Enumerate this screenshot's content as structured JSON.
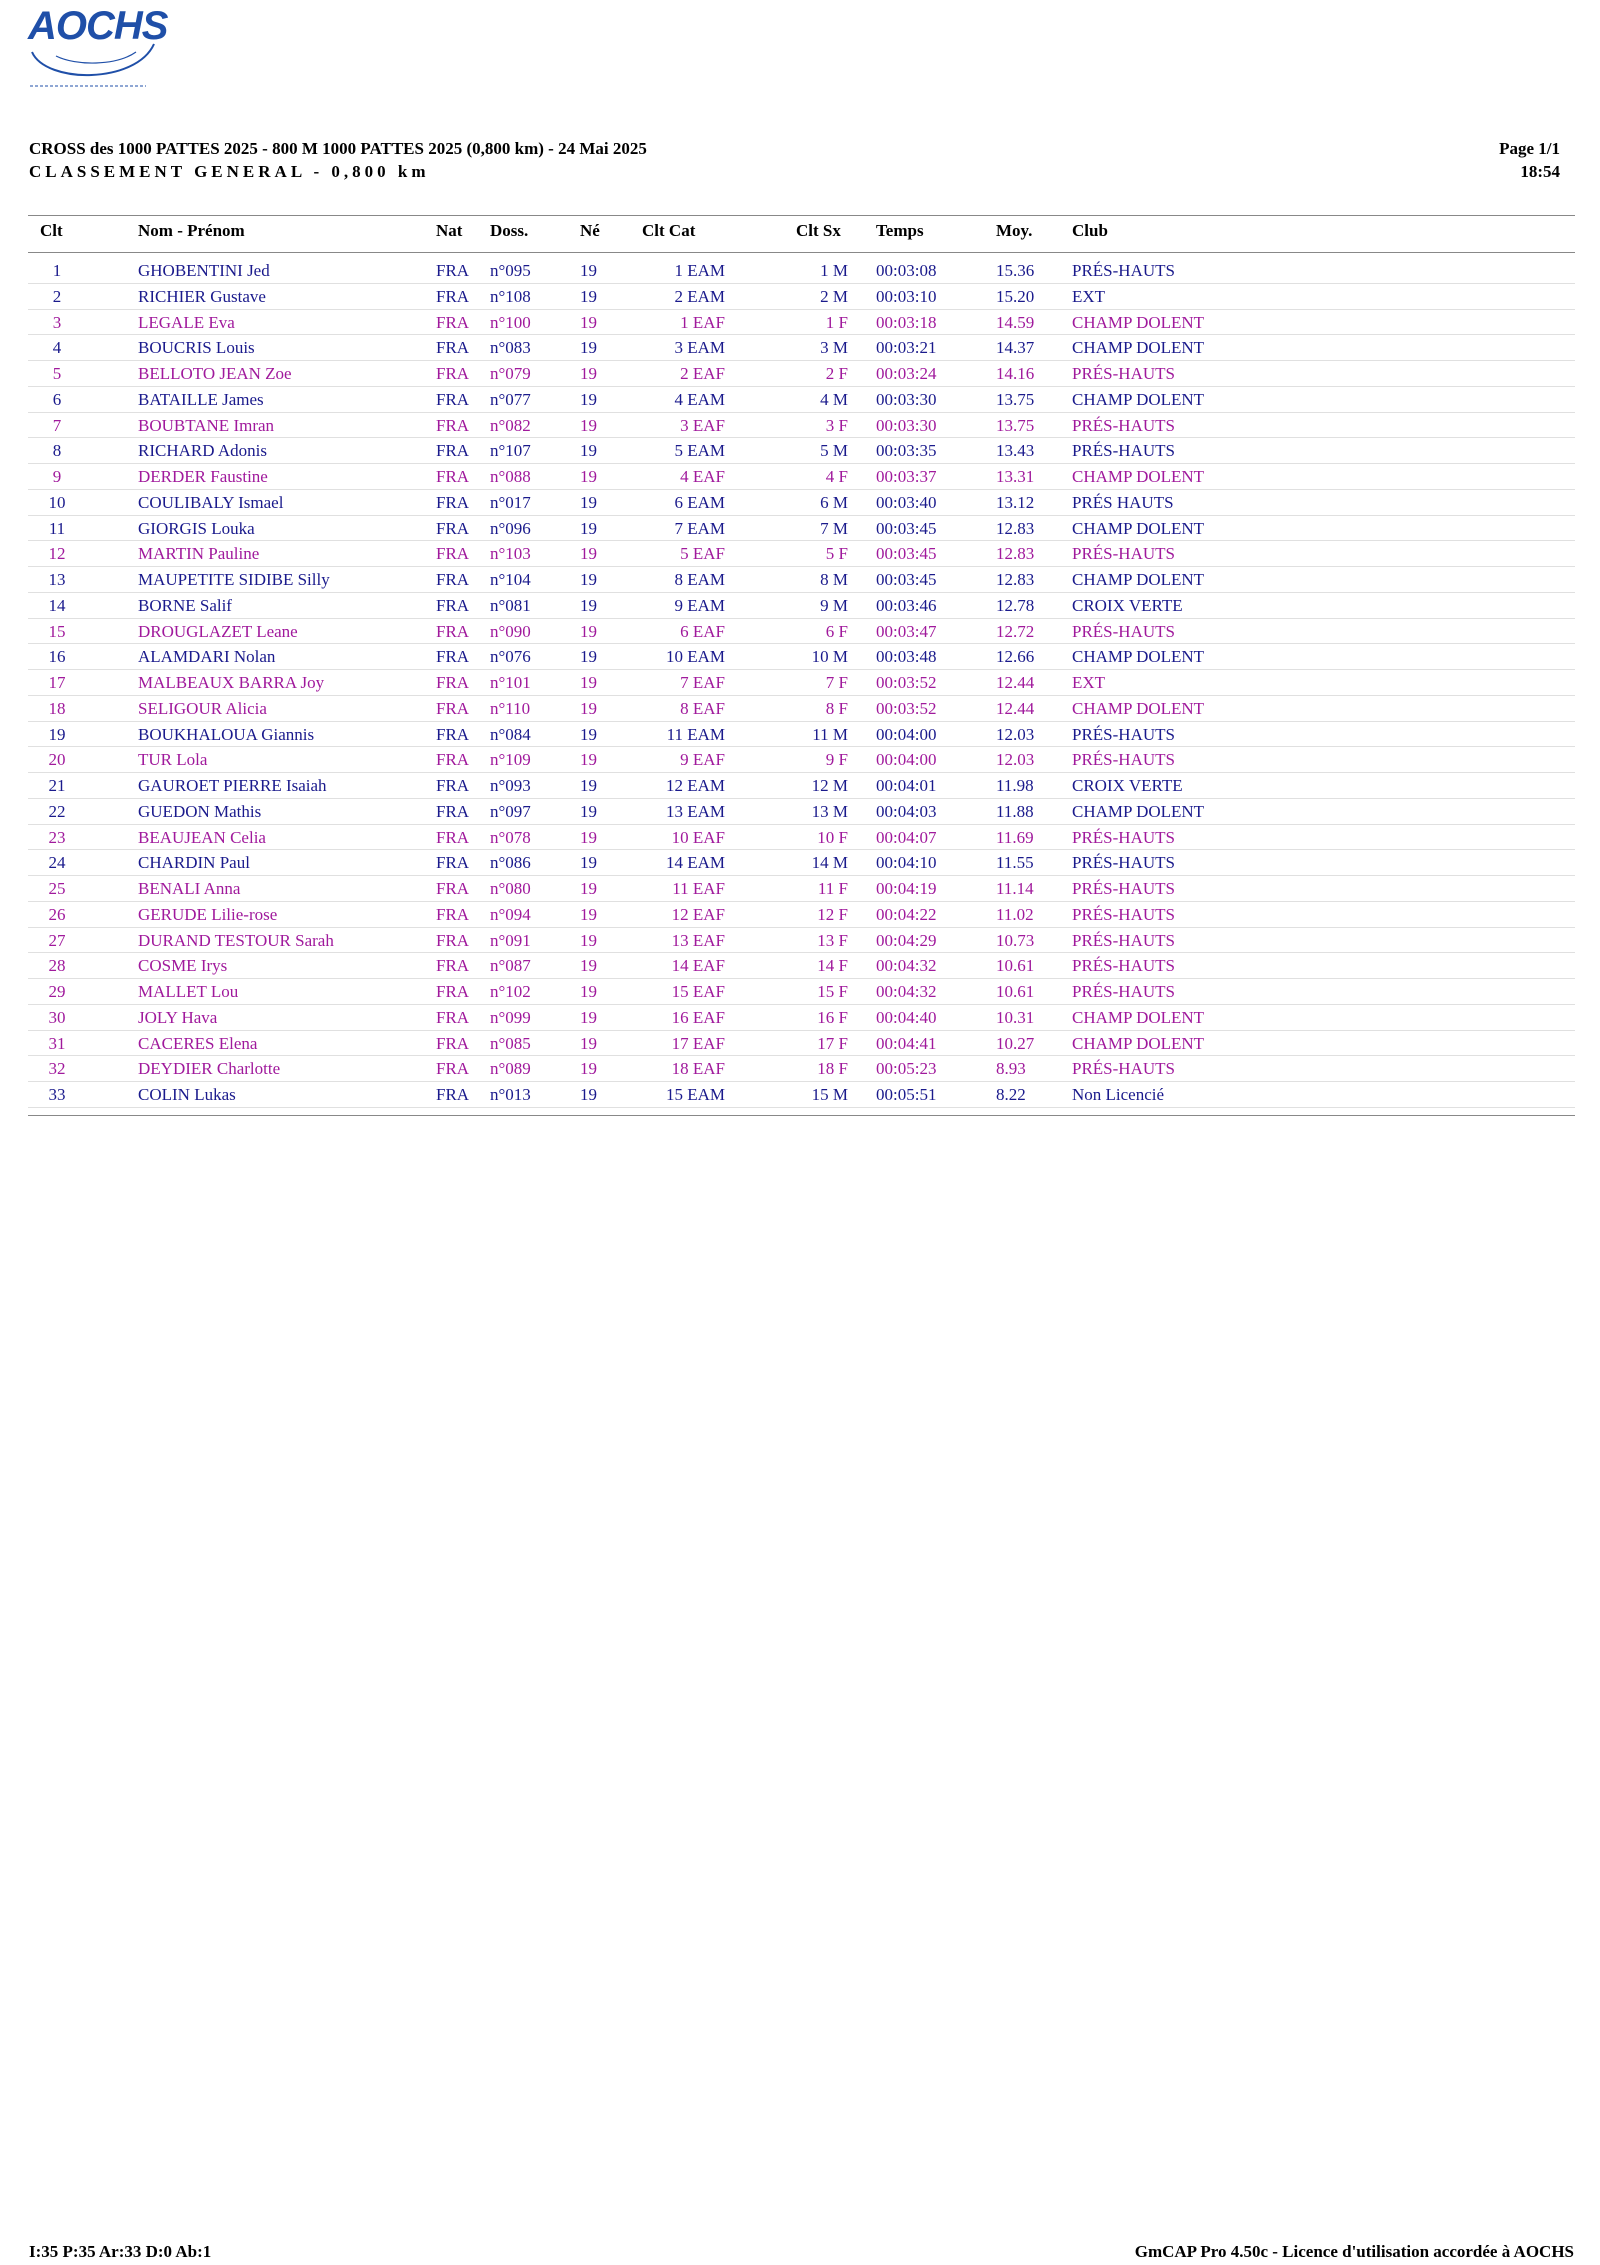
{
  "logo": {
    "text": "AOCHS"
  },
  "header": {
    "line1": "CROSS des 1000 PATTES 2025 - 800 M 1000 PATTES 2025 (0,800 km) - 24 Mai 2025",
    "line2": "CLASSEMENT GENERAL - 0,800 km",
    "page": "Page 1/1",
    "time": "18:54"
  },
  "columns": {
    "clt": "Clt",
    "name": "Nom - Prénom",
    "nat": "Nat",
    "doss": "Doss.",
    "ne": "Né",
    "cat": "Clt Cat",
    "sx": "Clt Sx",
    "temps": "Temps",
    "moy": "Moy.",
    "club": "Club"
  },
  "colors": {
    "male": "#1a1a8c",
    "female": "#a0199c"
  },
  "rows": [
    {
      "clt": "1",
      "name": "GHOBENTINI Jed",
      "nat": "FRA",
      "doss": "n°095",
      "ne": "19",
      "cat": "1 EAM",
      "sx": "1 M",
      "temps": "00:03:08",
      "moy": "15.36",
      "club": "PRÉS-HAUTS",
      "g": "m"
    },
    {
      "clt": "2",
      "name": "RICHIER Gustave",
      "nat": "FRA",
      "doss": "n°108",
      "ne": "19",
      "cat": "2 EAM",
      "sx": "2 M",
      "temps": "00:03:10",
      "moy": "15.20",
      "club": "EXT",
      "g": "m"
    },
    {
      "clt": "3",
      "name": "LEGALE Eva",
      "nat": "FRA",
      "doss": "n°100",
      "ne": "19",
      "cat": "1 EAF",
      "sx": "1 F",
      "temps": "00:03:18",
      "moy": "14.59",
      "club": "CHAMP DOLENT",
      "g": "f"
    },
    {
      "clt": "4",
      "name": "BOUCRIS Louis",
      "nat": "FRA",
      "doss": "n°083",
      "ne": "19",
      "cat": "3 EAM",
      "sx": "3 M",
      "temps": "00:03:21",
      "moy": "14.37",
      "club": "CHAMP DOLENT",
      "g": "m"
    },
    {
      "clt": "5",
      "name": "BELLOTO JEAN Zoe",
      "nat": "FRA",
      "doss": "n°079",
      "ne": "19",
      "cat": "2 EAF",
      "sx": "2 F",
      "temps": "00:03:24",
      "moy": "14.16",
      "club": "PRÉS-HAUTS",
      "g": "f"
    },
    {
      "clt": "6",
      "name": "BATAILLE James",
      "nat": "FRA",
      "doss": "n°077",
      "ne": "19",
      "cat": "4 EAM",
      "sx": "4 M",
      "temps": "00:03:30",
      "moy": "13.75",
      "club": "CHAMP DOLENT",
      "g": "m"
    },
    {
      "clt": "7",
      "name": "BOUBTANE Imran",
      "nat": "FRA",
      "doss": "n°082",
      "ne": "19",
      "cat": "3 EAF",
      "sx": "3 F",
      "temps": "00:03:30",
      "moy": "13.75",
      "club": "PRÉS-HAUTS",
      "g": "f"
    },
    {
      "clt": "8",
      "name": "RICHARD Adonis",
      "nat": "FRA",
      "doss": "n°107",
      "ne": "19",
      "cat": "5 EAM",
      "sx": "5 M",
      "temps": "00:03:35",
      "moy": "13.43",
      "club": "PRÉS-HAUTS",
      "g": "m"
    },
    {
      "clt": "9",
      "name": "DERDER Faustine",
      "nat": "FRA",
      "doss": "n°088",
      "ne": "19",
      "cat": "4 EAF",
      "sx": "4 F",
      "temps": "00:03:37",
      "moy": "13.31",
      "club": "CHAMP DOLENT",
      "g": "f"
    },
    {
      "clt": "10",
      "name": "COULIBALY Ismael",
      "nat": "FRA",
      "doss": "n°017",
      "ne": "19",
      "cat": "6 EAM",
      "sx": "6 M",
      "temps": "00:03:40",
      "moy": "13.12",
      "club": "PRÉS HAUTS",
      "g": "m"
    },
    {
      "clt": "11",
      "name": "GIORGIS Louka",
      "nat": "FRA",
      "doss": "n°096",
      "ne": "19",
      "cat": "7 EAM",
      "sx": "7 M",
      "temps": "00:03:45",
      "moy": "12.83",
      "club": "CHAMP DOLENT",
      "g": "m"
    },
    {
      "clt": "12",
      "name": "MARTIN Pauline",
      "nat": "FRA",
      "doss": "n°103",
      "ne": "19",
      "cat": "5 EAF",
      "sx": "5 F",
      "temps": "00:03:45",
      "moy": "12.83",
      "club": "PRÉS-HAUTS",
      "g": "f"
    },
    {
      "clt": "13",
      "name": "MAUPETITE SIDIBE Silly",
      "nat": "FRA",
      "doss": "n°104",
      "ne": "19",
      "cat": "8 EAM",
      "sx": "8 M",
      "temps": "00:03:45",
      "moy": "12.83",
      "club": "CHAMP DOLENT",
      "g": "m"
    },
    {
      "clt": "14",
      "name": "BORNE Salif",
      "nat": "FRA",
      "doss": "n°081",
      "ne": "19",
      "cat": "9 EAM",
      "sx": "9 M",
      "temps": "00:03:46",
      "moy": "12.78",
      "club": "CROIX VERTE",
      "g": "m"
    },
    {
      "clt": "15",
      "name": "DROUGLAZET Leane",
      "nat": "FRA",
      "doss": "n°090",
      "ne": "19",
      "cat": "6 EAF",
      "sx": "6 F",
      "temps": "00:03:47",
      "moy": "12.72",
      "club": "PRÉS-HAUTS",
      "g": "f"
    },
    {
      "clt": "16",
      "name": "ALAMDARI Nolan",
      "nat": "FRA",
      "doss": "n°076",
      "ne": "19",
      "cat": "10 EAM",
      "sx": "10 M",
      "temps": "00:03:48",
      "moy": "12.66",
      "club": "CHAMP DOLENT",
      "g": "m"
    },
    {
      "clt": "17",
      "name": "MALBEAUX BARRA Joy",
      "nat": "FRA",
      "doss": "n°101",
      "ne": "19",
      "cat": "7 EAF",
      "sx": "7 F",
      "temps": "00:03:52",
      "moy": "12.44",
      "club": "EXT",
      "g": "f"
    },
    {
      "clt": "18",
      "name": "SELIGOUR Alicia",
      "nat": "FRA",
      "doss": "n°110",
      "ne": "19",
      "cat": "8 EAF",
      "sx": "8 F",
      "temps": "00:03:52",
      "moy": "12.44",
      "club": "CHAMP DOLENT",
      "g": "f"
    },
    {
      "clt": "19",
      "name": "BOUKHALOUA Giannis",
      "nat": "FRA",
      "doss": "n°084",
      "ne": "19",
      "cat": "11 EAM",
      "sx": "11 M",
      "temps": "00:04:00",
      "moy": "12.03",
      "club": "PRÉS-HAUTS",
      "g": "m"
    },
    {
      "clt": "20",
      "name": "TUR Lola",
      "nat": "FRA",
      "doss": "n°109",
      "ne": "19",
      "cat": "9 EAF",
      "sx": "9 F",
      "temps": "00:04:00",
      "moy": "12.03",
      "club": "PRÉS-HAUTS",
      "g": "f"
    },
    {
      "clt": "21",
      "name": "GAUROET PIERRE Isaiah",
      "nat": "FRA",
      "doss": "n°093",
      "ne": "19",
      "cat": "12 EAM",
      "sx": "12 M",
      "temps": "00:04:01",
      "moy": "11.98",
      "club": "CROIX VERTE",
      "g": "m"
    },
    {
      "clt": "22",
      "name": "GUEDON Mathis",
      "nat": "FRA",
      "doss": "n°097",
      "ne": "19",
      "cat": "13 EAM",
      "sx": "13 M",
      "temps": "00:04:03",
      "moy": "11.88",
      "club": "CHAMP DOLENT",
      "g": "m"
    },
    {
      "clt": "23",
      "name": "BEAUJEAN Celia",
      "nat": "FRA",
      "doss": "n°078",
      "ne": "19",
      "cat": "10 EAF",
      "sx": "10 F",
      "temps": "00:04:07",
      "moy": "11.69",
      "club": "PRÉS-HAUTS",
      "g": "f"
    },
    {
      "clt": "24",
      "name": "CHARDIN Paul",
      "nat": "FRA",
      "doss": "n°086",
      "ne": "19",
      "cat": "14 EAM",
      "sx": "14 M",
      "temps": "00:04:10",
      "moy": "11.55",
      "club": "PRÉS-HAUTS",
      "g": "m"
    },
    {
      "clt": "25",
      "name": "BENALI Anna",
      "nat": "FRA",
      "doss": "n°080",
      "ne": "19",
      "cat": "11 EAF",
      "sx": "11 F",
      "temps": "00:04:19",
      "moy": "11.14",
      "club": "PRÉS-HAUTS",
      "g": "f"
    },
    {
      "clt": "26",
      "name": "GERUDE Lilie-rose",
      "nat": "FRA",
      "doss": "n°094",
      "ne": "19",
      "cat": "12 EAF",
      "sx": "12 F",
      "temps": "00:04:22",
      "moy": "11.02",
      "club": "PRÉS-HAUTS",
      "g": "f"
    },
    {
      "clt": "27",
      "name": "DURAND TESTOUR Sarah",
      "nat": "FRA",
      "doss": "n°091",
      "ne": "19",
      "cat": "13 EAF",
      "sx": "13 F",
      "temps": "00:04:29",
      "moy": "10.73",
      "club": "PRÉS-HAUTS",
      "g": "f"
    },
    {
      "clt": "28",
      "name": "COSME Irys",
      "nat": "FRA",
      "doss": "n°087",
      "ne": "19",
      "cat": "14 EAF",
      "sx": "14 F",
      "temps": "00:04:32",
      "moy": "10.61",
      "club": "PRÉS-HAUTS",
      "g": "f"
    },
    {
      "clt": "29",
      "name": "MALLET Lou",
      "nat": "FRA",
      "doss": "n°102",
      "ne": "19",
      "cat": "15 EAF",
      "sx": "15 F",
      "temps": "00:04:32",
      "moy": "10.61",
      "club": "PRÉS-HAUTS",
      "g": "f"
    },
    {
      "clt": "30",
      "name": "JOLY Hava",
      "nat": "FRA",
      "doss": "n°099",
      "ne": "19",
      "cat": "16 EAF",
      "sx": "16 F",
      "temps": "00:04:40",
      "moy": "10.31",
      "club": "CHAMP DOLENT",
      "g": "f"
    },
    {
      "clt": "31",
      "name": "CACERES Elena",
      "nat": "FRA",
      "doss": "n°085",
      "ne": "19",
      "cat": "17 EAF",
      "sx": "17 F",
      "temps": "00:04:41",
      "moy": "10.27",
      "club": "CHAMP DOLENT",
      "g": "f"
    },
    {
      "clt": "32",
      "name": "DEYDIER Charlotte",
      "nat": "FRA",
      "doss": "n°089",
      "ne": "19",
      "cat": "18 EAF",
      "sx": "18 F",
      "temps": "00:05:23",
      "moy": "8.93",
      "club": "PRÉS-HAUTS",
      "g": "f"
    },
    {
      "clt": "33",
      "name": "COLIN Lukas",
      "nat": "FRA",
      "doss": "n°013",
      "ne": "19",
      "cat": "15 EAM",
      "sx": "15 M",
      "temps": "00:05:51",
      "moy": "8.22",
      "club": "Non Licencié",
      "g": "m"
    }
  ],
  "footer": {
    "left": "I:35 P:35 Ar:33 D:0 Ab:1",
    "right": "GmCAP Pro 4.50c - Licence d'utilisation accordée à AOCHS"
  }
}
